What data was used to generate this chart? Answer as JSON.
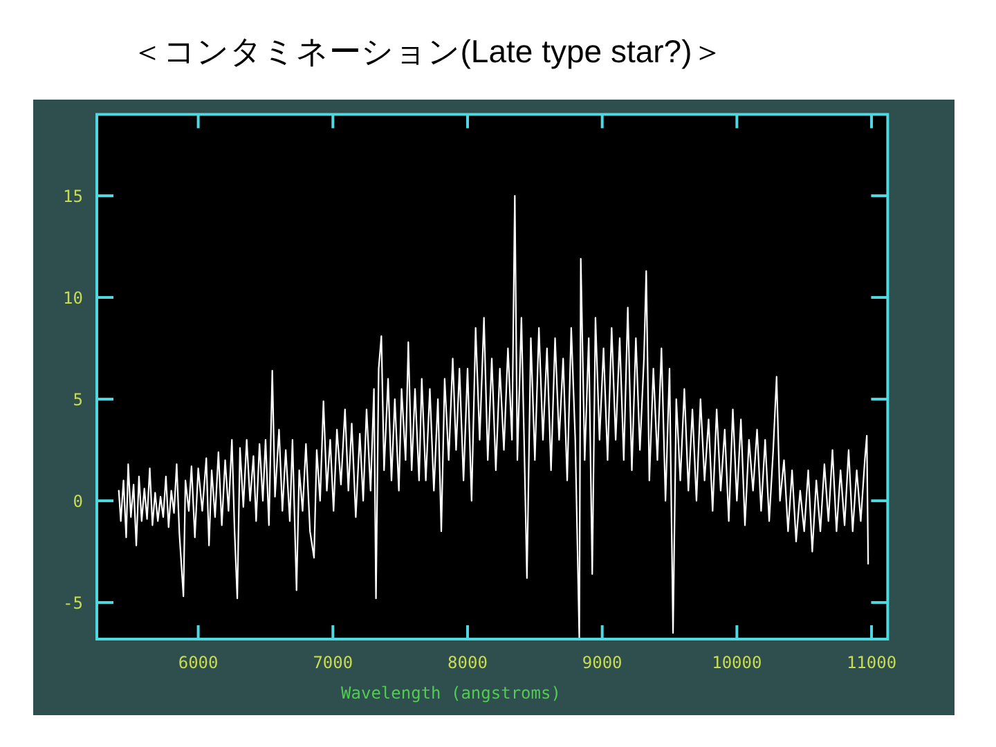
{
  "chart_data": {
    "type": "line",
    "title": "＜コンタミネーション(Late type star?)＞",
    "xlabel": "Wavelength (angstroms)",
    "x": [
      5410,
      5425,
      5445,
      5465,
      5480,
      5500,
      5520,
      5540,
      5560,
      5580,
      5600,
      5620,
      5640,
      5660,
      5680,
      5700,
      5720,
      5740,
      5760,
      5780,
      5800,
      5820,
      5840,
      5860,
      5890,
      5905,
      5930,
      5950,
      5975,
      6000,
      6030,
      6060,
      6080,
      6100,
      6125,
      6150,
      6175,
      6200,
      6225,
      6250,
      6270,
      6290,
      6310,
      6335,
      6360,
      6385,
      6410,
      6430,
      6455,
      6480,
      6500,
      6525,
      6550,
      6570,
      6600,
      6625,
      6650,
      6680,
      6700,
      6730,
      6750,
      6775,
      6800,
      6830,
      6860,
      6880,
      6905,
      6930,
      6955,
      6980,
      7005,
      7030,
      7060,
      7090,
      7115,
      7140,
      7170,
      7200,
      7225,
      7250,
      7280,
      7305,
      7320,
      7340,
      7360,
      7380,
      7410,
      7435,
      7460,
      7490,
      7510,
      7540,
      7560,
      7585,
      7610,
      7640,
      7660,
      7690,
      7720,
      7750,
      7780,
      7805,
      7830,
      7860,
      7890,
      7915,
      7940,
      7970,
      8000,
      8030,
      8060,
      8090,
      8122,
      8150,
      8180,
      8210,
      8240,
      8270,
      8300,
      8330,
      8351,
      8370,
      8400,
      8420,
      8441,
      8470,
      8500,
      8530,
      8560,
      8590,
      8620,
      8650,
      8680,
      8710,
      8740,
      8770,
      8800,
      8830,
      8841,
      8870,
      8900,
      8926,
      8950,
      8980,
      9010,
      9040,
      9070,
      9100,
      9130,
      9160,
      9190,
      9220,
      9250,
      9280,
      9310,
      9327,
      9350,
      9380,
      9410,
      9440,
      9470,
      9500,
      9526,
      9550,
      9580,
      9610,
      9640,
      9670,
      9700,
      9730,
      9760,
      9790,
      9820,
      9850,
      9880,
      9910,
      9940,
      9970,
      10000,
      10030,
      10060,
      10090,
      10120,
      10150,
      10180,
      10210,
      10240,
      10270,
      10295,
      10320,
      10350,
      10380,
      10410,
      10440,
      10470,
      10500,
      10530,
      10560,
      10590,
      10620,
      10650,
      10680,
      10710,
      10740,
      10770,
      10800,
      10830,
      10860,
      10890,
      10920,
      10950,
      10965,
      10975
    ],
    "series": [
      {
        "color": "#ffffff",
        "values": [
          0.5,
          -1.0,
          1.0,
          -1.8,
          1.8,
          -0.8,
          0.8,
          -2.2,
          1.2,
          -1.0,
          0.6,
          -0.9,
          1.6,
          -1.2,
          0.4,
          -1.0,
          0.2,
          -0.8,
          1.2,
          -1.3,
          0.5,
          -0.6,
          1.8,
          -1.6,
          -4.7,
          1.0,
          -0.5,
          1.7,
          -1.8,
          1.6,
          -0.5,
          2.1,
          -2.2,
          1.5,
          -0.8,
          2.4,
          -1.2,
          2.0,
          -0.5,
          3.0,
          -1.5,
          -4.8,
          2.6,
          -0.3,
          3.0,
          0.0,
          2.2,
          -1.0,
          2.8,
          0.0,
          3.0,
          -1.2,
          6.4,
          0.2,
          3.5,
          -0.5,
          2.5,
          -1.0,
          3.0,
          -4.4,
          1.5,
          -0.5,
          2.8,
          -1.5,
          -2.8,
          2.5,
          0.0,
          4.9,
          0.5,
          3.0,
          -0.5,
          3.5,
          0.8,
          4.5,
          0.5,
          3.8,
          -0.8,
          3.3,
          0.0,
          4.5,
          0.5,
          5.5,
          -4.8,
          6.5,
          8.1,
          1.5,
          6.0,
          1.0,
          5.0,
          0.5,
          5.5,
          2.0,
          7.8,
          1.5,
          5.5,
          1.0,
          6.0,
          1.0,
          5.5,
          0.5,
          5.0,
          -1.5,
          6.0,
          2.0,
          7.0,
          2.5,
          6.5,
          1.0,
          6.5,
          0.0,
          8.5,
          3.0,
          9.0,
          2.0,
          7.0,
          1.5,
          6.5,
          2.5,
          7.5,
          3.0,
          15.0,
          2.0,
          9.0,
          3.0,
          -3.8,
          8.0,
          2.0,
          8.5,
          3.0,
          7.5,
          1.5,
          8.0,
          3.0,
          7.0,
          1.0,
          8.5,
          3.0,
          -6.8,
          11.9,
          2.0,
          8.0,
          -3.6,
          9.0,
          3.0,
          7.5,
          2.0,
          8.5,
          3.0,
          8.0,
          2.0,
          9.5,
          1.5,
          8.0,
          2.5,
          7.0,
          11.3,
          1.0,
          6.5,
          2.0,
          7.5,
          0.0,
          6.5,
          -6.5,
          5.0,
          1.0,
          5.5,
          0.5,
          4.5,
          0.0,
          5.0,
          1.0,
          4.0,
          -0.5,
          4.5,
          0.5,
          3.5,
          -1.0,
          4.5,
          0.0,
          4.0,
          -1.2,
          3.0,
          0.5,
          3.5,
          -0.5,
          3.0,
          -1.0,
          2.5,
          6.1,
          0.0,
          2.0,
          -1.5,
          1.5,
          -2.0,
          0.5,
          -1.5,
          1.5,
          -2.5,
          1.0,
          -1.5,
          1.8,
          -1.0,
          2.5,
          -1.5,
          1.5,
          -1.2,
          2.5,
          -1.5,
          1.5,
          -1.0,
          2.0,
          3.2,
          -3.1
        ]
      }
    ],
    "xlim": [
      5247,
      11120
    ],
    "ylim": [
      -6.8,
      19.0
    ],
    "xticks": [
      6000,
      7000,
      8000,
      9000,
      10000,
      11000
    ],
    "yticks": [
      -5,
      0,
      5,
      10,
      15
    ],
    "grid": false
  }
}
